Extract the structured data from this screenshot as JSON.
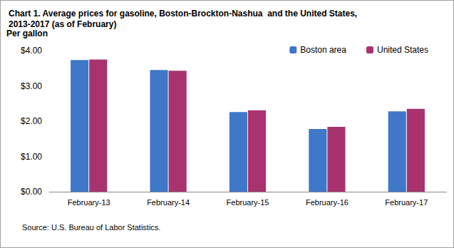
{
  "chart_data": {
    "type": "bar",
    "title": "Chart 1. Average prices for gasoline, Boston-Brockton-Nashua  and the United States,\n2013-2017 (as of February)",
    "y_label": "Per gallon",
    "source": "Source: U.S. Bureau of Labor Statistics.",
    "categories": [
      "February-13",
      "February-14",
      "February-15",
      "February-16",
      "February-17"
    ],
    "series": [
      {
        "name": "Boston area",
        "color": "#3f77c9",
        "values": [
          3.73,
          3.45,
          2.26,
          1.78,
          2.28
        ]
      },
      {
        "name": "United States",
        "color": "#a8336f",
        "values": [
          3.75,
          3.43,
          2.31,
          1.84,
          2.35
        ]
      }
    ],
    "ylim": [
      0,
      4
    ],
    "yticks": [
      {
        "value": 0,
        "label": "$0.00"
      },
      {
        "value": 1,
        "label": "$1.00"
      },
      {
        "value": 2,
        "label": "$2.00"
      },
      {
        "value": 3,
        "label": "$3.00"
      },
      {
        "value": 4,
        "label": "$4.00"
      }
    ],
    "grid": false,
    "legend": "top-right"
  }
}
